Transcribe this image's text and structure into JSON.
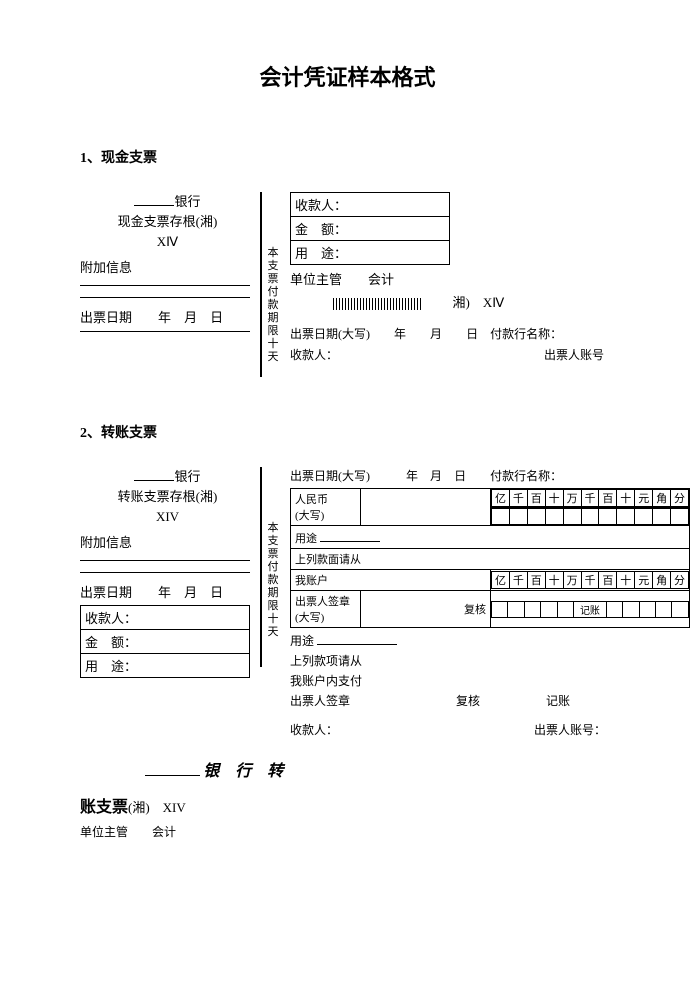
{
  "title": "会计凭证样本格式",
  "sections": {
    "cash": {
      "heading": "1、现金支票",
      "stub": {
        "bank_suffix": "银行",
        "stub_title": "现金支票存根(湘)",
        "code": "XⅣ",
        "extra_info": "附加信息",
        "issue_date_label": "出票日期",
        "year": "年",
        "month": "月",
        "day": "日"
      },
      "vertical": "本支票付款期限十天",
      "main": {
        "payee": "收款人：",
        "amount": "金　额：",
        "purpose": "用　途：",
        "supervisor": "单位主管　　会计",
        "region": "湘)",
        "code": "XⅣ",
        "issue_date_cap": "出票日期(大写)",
        "year": "年",
        "month": "月",
        "day": "日",
        "bank_name": "付款行名称：",
        "payee2": "收款人：",
        "drawer_acct": "出票人账号"
      }
    },
    "transfer": {
      "heading": "2、转账支票",
      "stub": {
        "bank_suffix": "银行",
        "stub_title": "转账支票存根(湘)",
        "code": "XIV",
        "extra_info": "附加信息",
        "issue_date_label": "出票日期",
        "year": "年",
        "month": "月",
        "day": "日",
        "payee": "收款人：",
        "amount": "金　额：",
        "purpose": "用　途："
      },
      "vertical": "本支票付款期限十天",
      "main": {
        "issue_date_cap": "出票日期(大写)",
        "year": "年",
        "month": "月",
        "day": "日",
        "bank_name": "付款行名称：",
        "rmb": "人民币",
        "capital": "(大写)",
        "purpose": "用途",
        "above_items1": "上列款面请从",
        "my_account": "我账户",
        "drawer_sign_boxed": "出票人签章",
        "capital2": "(大写)",
        "reviewer": "复核",
        "bookkeeper": "记账",
        "purpose2": "用途",
        "above_items2": "上列款项请从",
        "my_account_pay": "我账户内支付",
        "drawer_sign": "出票人签章",
        "reviewer2": "复核",
        "bookkeeper2": "记账",
        "payee": "收款人：",
        "drawer_acct": "出票人账号："
      },
      "digits": [
        "亿",
        "千",
        "百",
        "十",
        "万",
        "千",
        "百",
        "十",
        "元",
        "角",
        "分"
      ]
    },
    "footer": {
      "bank_transfer": "银 行 转",
      "account_check": "账支票",
      "region_code": "(湘)　XIV",
      "supervisor": "单位主管　　会计"
    }
  }
}
